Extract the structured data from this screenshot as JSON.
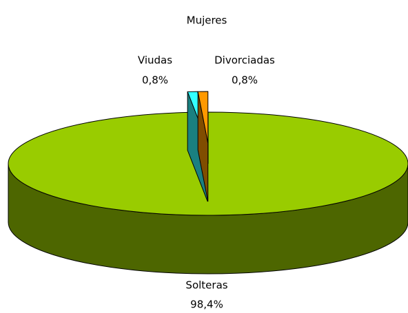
{
  "chart_data": {
    "type": "pie",
    "title": "Mujeres",
    "categories": [
      "Solteras",
      "Viudas",
      "Divorciadas"
    ],
    "values": [
      98.4,
      0.8,
      0.8
    ],
    "value_labels": [
      "98,4%",
      "0,8%",
      "0,8%"
    ],
    "colors": [
      "#99cc00",
      "#33ffff",
      "#ff9900"
    ]
  }
}
